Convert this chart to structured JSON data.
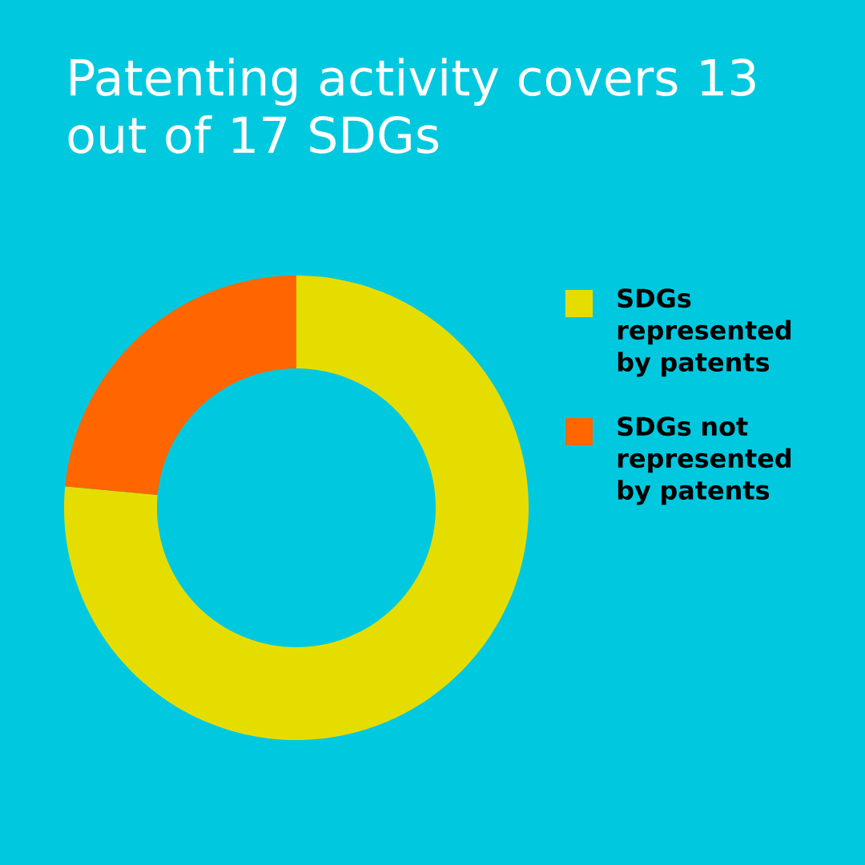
{
  "chart_data": {
    "type": "donut",
    "title": "Patenting activity covers 13 out of 17 SDGs",
    "categories": [
      "SDGs represented by patents",
      "SDGs not represented by patents"
    ],
    "values": [
      76.47,
      23.53
    ],
    "colors": [
      "#e6dd00",
      "#ff6600"
    ],
    "legend": "right"
  }
}
